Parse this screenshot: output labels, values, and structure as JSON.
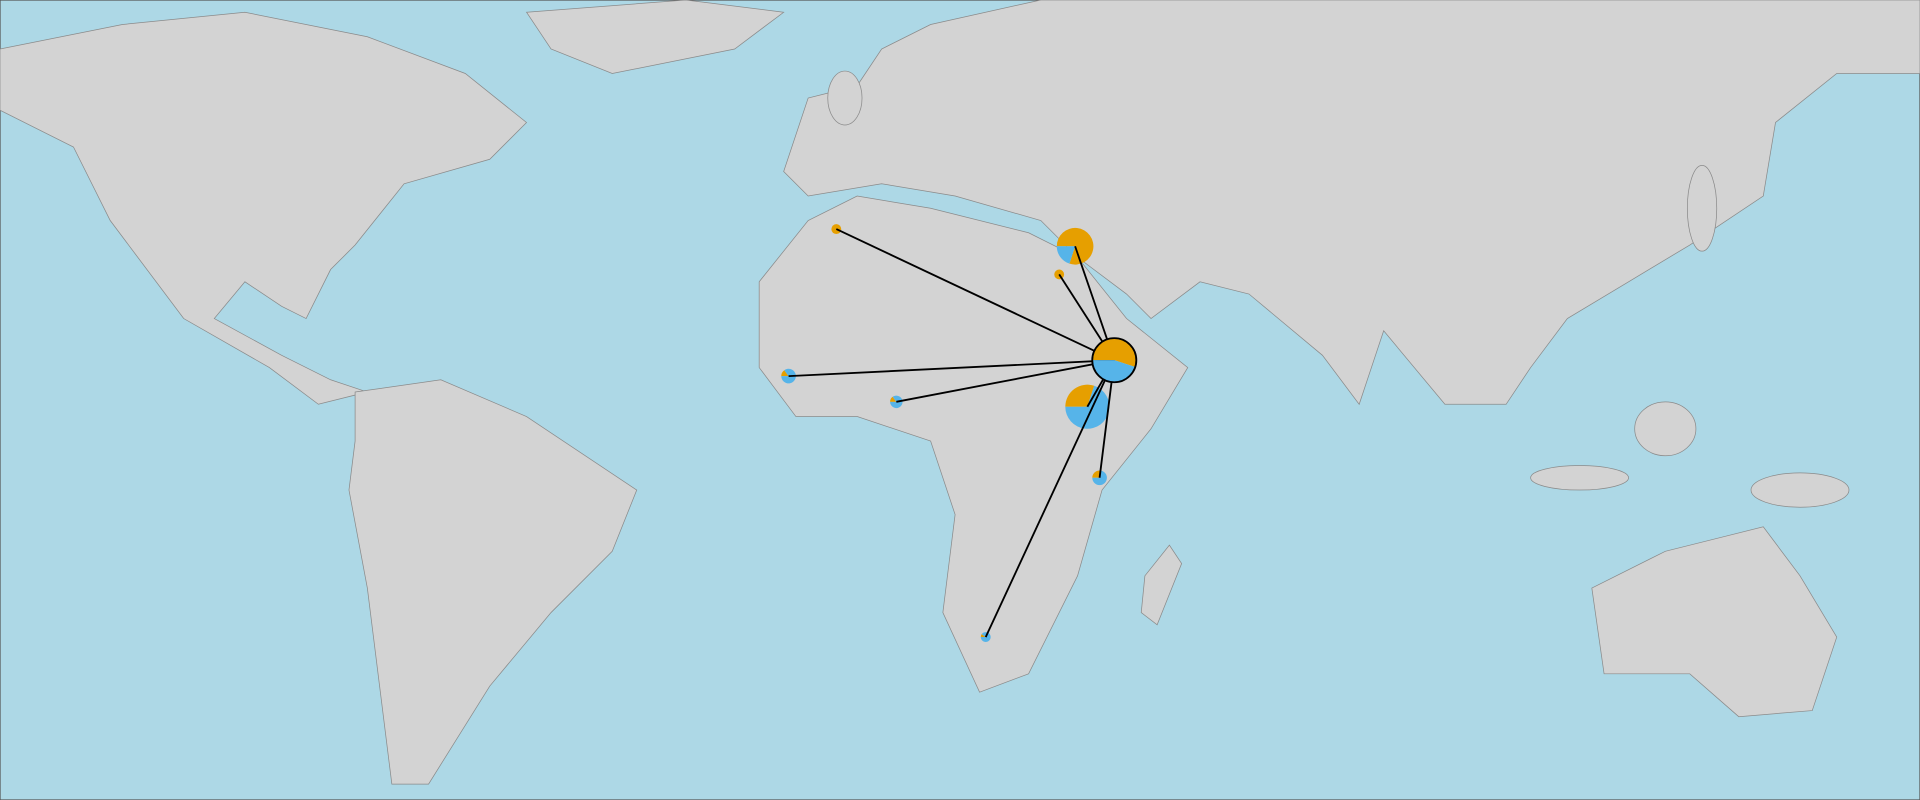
{
  "pies": {
    "colors": [
      "#e69f00",
      "#56b4e9"
    ],
    "sites": [
      {
        "values": [
          55,
          45
        ],
        "size": 100
      },
      {
        "values": [
          80,
          20
        ],
        "size": 69
      },
      {
        "values": [
          100,
          0
        ],
        "size": 5
      },
      {
        "values": [
          100,
          0
        ],
        "size": 5
      },
      {
        "values": [
          15,
          85
        ],
        "size": 11
      },
      {
        "values": [
          15,
          85
        ],
        "size": 8
      },
      {
        "values": [
          30,
          70
        ],
        "size": 100
      },
      {
        "values": [
          25,
          75
        ],
        "size": 11
      },
      {
        "values": [
          10,
          90
        ],
        "size": 5
      }
    ]
  }
}
